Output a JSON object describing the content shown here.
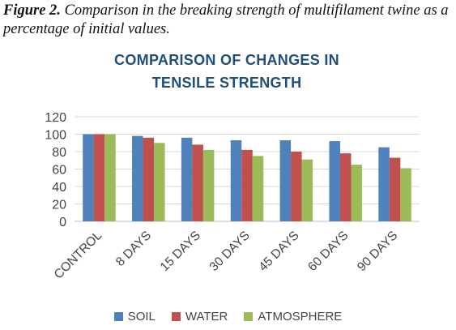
{
  "caption": {
    "figure_label": "Figure 2.",
    "text": "Comparison in the breaking strength of multifilament twine as a percentage of initial values."
  },
  "chart_data": {
    "type": "bar",
    "title_line1": "COMPARISON OF CHANGES IN",
    "title_line2": "TENSILE STRENGTH",
    "xlabel": "",
    "ylabel": "",
    "categories": [
      "CONTROL",
      "8 DAYS",
      "15 DAYS",
      "30 DAYS",
      "45 DAYS",
      "60 DAYS",
      "90 DAYS"
    ],
    "series": [
      {
        "name": "SOIL",
        "color": "#4f81bd",
        "values": [
          100,
          98,
          96,
          93,
          93,
          92,
          85
        ]
      },
      {
        "name": "WATER",
        "color": "#c0504d",
        "values": [
          100,
          96,
          88,
          82,
          80,
          78,
          73
        ]
      },
      {
        "name": "ATMOSPHERE",
        "color": "#9bbb59",
        "values": [
          100,
          90,
          82,
          75,
          71,
          65,
          61
        ]
      }
    ],
    "ylim": [
      0,
      120
    ],
    "yticks": [
      "0",
      "20",
      "40",
      "60",
      "80",
      "100",
      "120"
    ],
    "grid": true,
    "legend_position": "bottom"
  }
}
